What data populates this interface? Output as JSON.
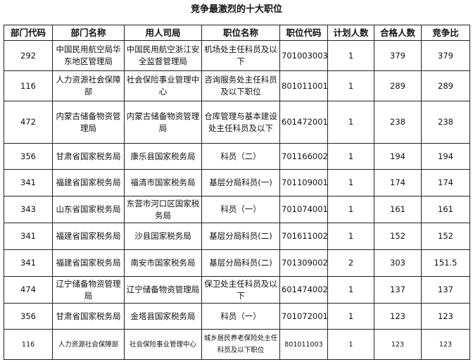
{
  "title": "竞争最激烈的十大职位",
  "headers": [
    "部门代码",
    "部门名称",
    "用人司局",
    "职位名称",
    "职位代码",
    "计划人数",
    "合格人数",
    "竞争比"
  ],
  "rows": [
    [
      "292",
      "中国民用航空局华东地区管理局",
      "中国民用航空浙江安全监督管理局",
      "机场处主任科员及以下",
      "701003003",
      "1",
      "379",
      "379"
    ],
    [
      "116",
      "人力资源社会保障部",
      "社会保险事业管理中心",
      "咨询服务处主任科员及以下职位",
      "801011001",
      "1",
      "289",
      "289"
    ],
    [
      "472",
      "内蒙古储备物资管理局",
      "内蒙古储备物资管理局",
      "仓库管理与基本建设处主任科员及以下",
      "601472001",
      "1",
      "238",
      "238"
    ],
    [
      "356",
      "甘肃省国家税务局",
      "康乐县国家税务局",
      "科员（二）",
      "701166002",
      "1",
      "194",
      "194"
    ],
    [
      "341",
      "福建省国家税务局",
      "福清市国家税务局",
      "基层分局科员(一)",
      "701109001",
      "1",
      "174",
      "174"
    ],
    [
      "343",
      "山东省国家税务局",
      "东营市河口区国家税务局",
      "科员（一）",
      "701074001",
      "1",
      "161",
      "161"
    ],
    [
      "341",
      "福建省国家税务局",
      "沙县国家税务局",
      "基层分局科员(二)",
      "701611002",
      "1",
      "152",
      "152"
    ],
    [
      "341",
      "福建省国家税务局",
      "南安市国家税务局",
      "基层分局科员(二)",
      "701309002",
      "2",
      "303",
      "151.5"
    ],
    [
      "474",
      "辽宁储备物资管理局",
      "辽宁储备物资管理局",
      "保卫处主任科员及以下",
      "601474002",
      "1",
      "137",
      "137"
    ],
    [
      "356",
      "甘肃省国家税务局",
      "金塔县国家税务局",
      "科员（一）",
      "701072001",
      "1",
      "123",
      "123"
    ],
    [
      "116",
      "人力资源社会保障部",
      "社会保险事业管理中心",
      "城乡居民养老保险处主任科员及以下职位",
      "801011003",
      "1",
      "123",
      "123"
    ]
  ]
}
